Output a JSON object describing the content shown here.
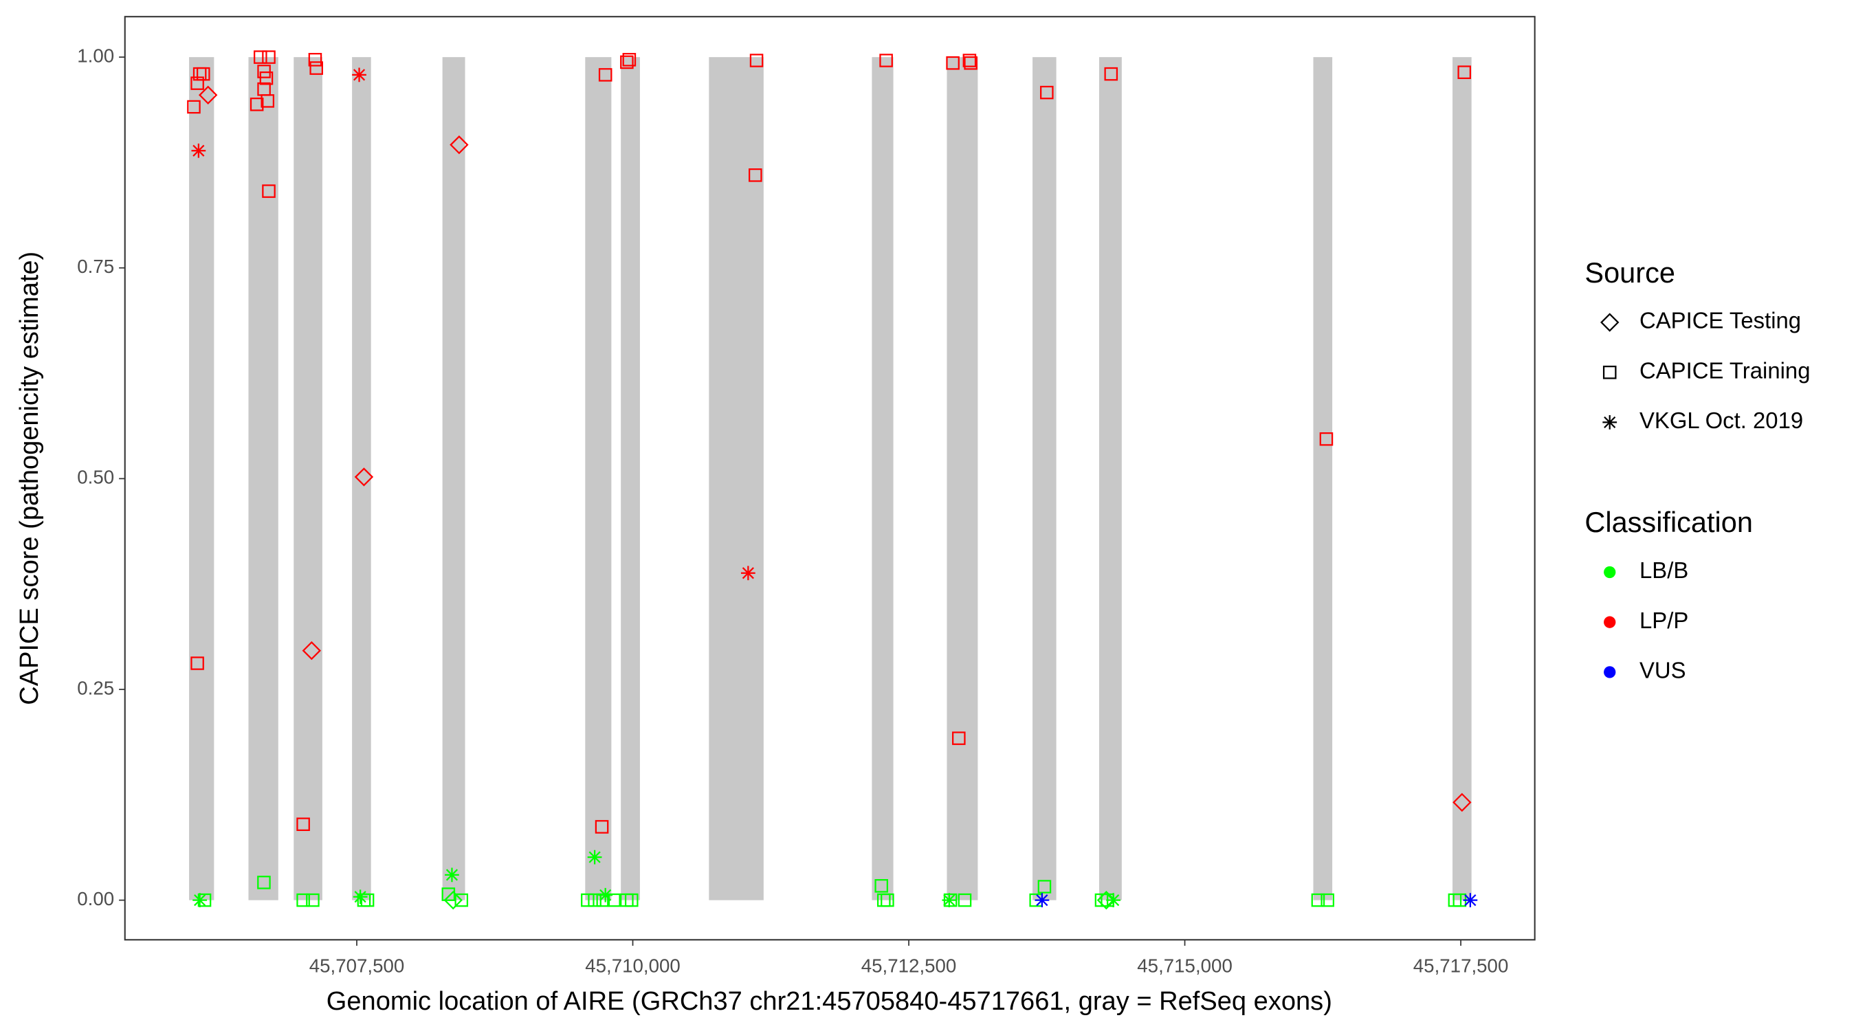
{
  "chart_data": {
    "type": "scatter",
    "x_label": "Genomic location of AIRE (GRCh37 chr21:45705840-45717661, gray = RefSeq exons)",
    "y_label": "CAPICE score (pathogenicity estimate)",
    "xlim": [
      45705400,
      45718170
    ],
    "ylim": [
      -0.047,
      1.048
    ],
    "xticks": [
      {
        "value": 45707500,
        "label": "45,707,500"
      },
      {
        "value": 45710000,
        "label": "45,710,000"
      },
      {
        "value": 45712500,
        "label": "45,712,500"
      },
      {
        "value": 45715000,
        "label": "45,715,000"
      },
      {
        "value": 45717500,
        "label": "45,717,500"
      }
    ],
    "yticks": [
      {
        "value": 0,
        "label": "0.00"
      },
      {
        "value": 0.25,
        "label": "0.25"
      },
      {
        "value": 0.5,
        "label": "0.50"
      },
      {
        "value": 0.75,
        "label": "0.75"
      },
      {
        "value": 1,
        "label": "1.00"
      }
    ],
    "exon_color": "#c8c8c8",
    "exons": [
      [
        45705981,
        45706207
      ],
      [
        45706519,
        45706789
      ],
      [
        45706929,
        45707188
      ],
      [
        45707457,
        45707629
      ],
      [
        45708276,
        45708481
      ],
      [
        45709569,
        45709806
      ],
      [
        45709892,
        45710065
      ],
      [
        45710690,
        45711185
      ],
      [
        45712166,
        45712360
      ],
      [
        45712845,
        45713125
      ],
      [
        45713621,
        45713836
      ],
      [
        45714224,
        45714429
      ],
      [
        45716164,
        45716336
      ],
      [
        45717425,
        45717597
      ]
    ],
    "source_legend": {
      "title": "Source",
      "items": [
        {
          "name": "CAPICE Testing",
          "shape": "diamond"
        },
        {
          "name": "CAPICE Training",
          "shape": "square"
        },
        {
          "name": "VKGL Oct. 2019",
          "shape": "asterisk"
        }
      ]
    },
    "class_legend": {
      "title": "Classification",
      "items": [
        {
          "name": "LB/B",
          "color": "#00ff00"
        },
        {
          "name": "LP/P",
          "color": "#ff0000"
        },
        {
          "name": "VUS",
          "color": "#0000ff"
        }
      ]
    },
    "series": [
      {
        "source": 1,
        "class": 1,
        "x": [
          45706024,
          45706056,
          45706078,
          45706110,
          45706056,
          45706595,
          45706627,
          45706660,
          45706703,
          45706681,
          45706660,
          45706692,
          45706703,
          45707015,
          45707123,
          45707134,
          45709752,
          45709720,
          45709946,
          45709968,
          45711121,
          45711110,
          45712295,
          45712899,
          45713050,
          45713061,
          45712953,
          45713750,
          45714332,
          45716282,
          45717532
        ],
        "values": [
          0.941,
          0.969,
          0.98,
          0.98,
          0.281,
          0.944,
          1.0,
          0.983,
          1.0,
          0.975,
          0.962,
          0.948,
          0.841,
          0.09,
          0.997,
          0.987,
          0.979,
          0.087,
          0.994,
          0.997,
          0.996,
          0.86,
          0.996,
          0.993,
          0.996,
          0.993,
          0.192,
          0.958,
          0.98,
          0.547,
          0.982
        ]
      },
      {
        "source": 0,
        "class": 1,
        "x": [
          45706153,
          45708427,
          45707565,
          45707091,
          45717511
        ],
        "values": [
          0.955,
          0.896,
          0.502,
          0.296,
          0.116
        ]
      },
      {
        "source": 2,
        "class": 1,
        "x": [
          45706067,
          45707522,
          45711045
        ],
        "values": [
          0.889,
          0.979,
          0.388
        ]
      },
      {
        "source": 1,
        "class": 0,
        "x": [
          45706121,
          45706659,
          45707015,
          45707101,
          45707565,
          45707597,
          45708330,
          45708448,
          45709591,
          45709655,
          45709731,
          45709828,
          45709946,
          45709989,
          45712252,
          45712274,
          45712306,
          45712877,
          45713007,
          45713653,
          45713729,
          45714246,
          45714300,
          45716207,
          45716293,
          45717446,
          45717489
        ],
        "values": [
          0,
          0.021,
          0,
          0,
          0,
          0,
          0.007,
          0,
          0,
          0,
          0,
          0,
          0,
          0,
          0.017,
          0,
          0,
          0,
          0,
          0,
          0.016,
          0,
          0,
          0,
          0,
          0,
          0
        ]
      },
      {
        "source": 2,
        "class": 0,
        "x": [
          45706078,
          45708362,
          45709655,
          45709752,
          45707532,
          45712866,
          45714353
        ],
        "values": [
          0,
          0.03,
          0.051,
          0.006,
          0.004,
          0,
          0
        ]
      },
      {
        "source": 0,
        "class": 0,
        "x": [
          45708373,
          45714289
        ],
        "values": [
          0,
          0
        ]
      },
      {
        "source": 2,
        "class": 2,
        "x": [
          45713707,
          45717586
        ],
        "values": [
          0,
          0
        ]
      }
    ]
  }
}
